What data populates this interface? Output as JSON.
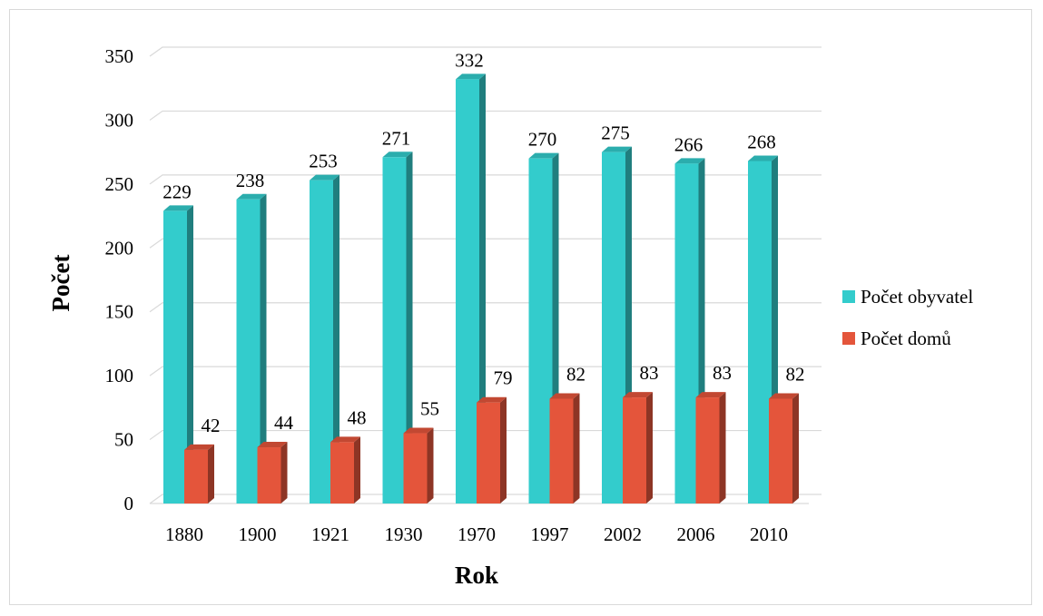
{
  "chart_data": {
    "type": "bar",
    "categories": [
      "1880",
      "1900",
      "1921",
      "1930",
      "1970",
      "1997",
      "2002",
      "2006",
      "2010"
    ],
    "series": [
      {
        "name": "Počet obyvatel",
        "values": [
          229,
          238,
          253,
          271,
          332,
          270,
          275,
          266,
          268
        ],
        "color": "#33cccc"
      },
      {
        "name": "Počet domů",
        "values": [
          42,
          44,
          48,
          55,
          79,
          82,
          83,
          83,
          82
        ],
        "color": "#e4553b"
      }
    ],
    "xlabel": "Rok",
    "ylabel": "Počet",
    "ylim": [
      0,
      350
    ],
    "yticks": [
      "0",
      "50",
      "100",
      "150",
      "200",
      "250",
      "300",
      "350"
    ],
    "grid": true,
    "legend_position": "right",
    "style": "3d-clustered-column"
  }
}
